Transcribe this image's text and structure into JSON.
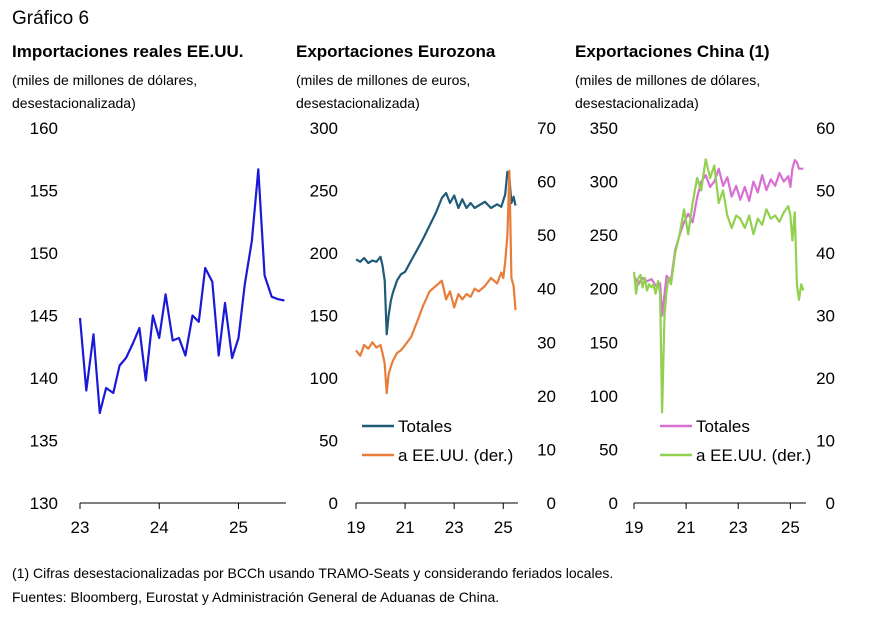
{
  "figure_title": "Gráfico 6",
  "footnote": "(1) Cifras desestacionalizadas por BCCh usando TRAMO-Seats y considerando feriados locales.",
  "sources": "Fuentes: Bloomberg, Eurostat y Administración General de Aduanas de China.",
  "chart_data": [
    {
      "type": "line",
      "title": "Importaciones reales EE.UU.",
      "subtitle_lines": [
        "(miles de millones de dólares,",
        "desestacionalizada)"
      ],
      "ylim": [
        130,
        160
      ],
      "yticks": [
        130,
        135,
        140,
        145,
        150,
        155,
        160
      ],
      "xlim": [
        2023.0,
        2025.6
      ],
      "xticks": [
        2023,
        2024,
        2025
      ],
      "xtick_labels": [
        "23",
        "24",
        "25"
      ],
      "series": [
        {
          "color": "#1a1ad6",
          "axis": "left",
          "x": [
            2023.0,
            2023.08,
            2023.17,
            2023.25,
            2023.33,
            2023.42,
            2023.5,
            2023.58,
            2023.67,
            2023.75,
            2023.83,
            2023.92,
            2024.0,
            2024.08,
            2024.17,
            2024.25,
            2024.33,
            2024.42,
            2024.5,
            2024.58,
            2024.67,
            2024.75,
            2024.83,
            2024.92,
            2025.0,
            2025.08,
            2025.17,
            2025.25,
            2025.33,
            2025.42,
            2025.5,
            2025.58
          ],
          "y": [
            144.8,
            139.0,
            143.5,
            137.2,
            139.2,
            138.8,
            141.0,
            141.6,
            142.8,
            144.0,
            139.8,
            145.0,
            143.2,
            146.7,
            143.0,
            143.2,
            141.8,
            145.0,
            144.5,
            148.8,
            147.7,
            141.8,
            146.0,
            141.6,
            143.2,
            147.5,
            151.0,
            156.7,
            148.2,
            146.5,
            146.3,
            146.2
          ]
        }
      ]
    },
    {
      "type": "line",
      "title": "Exportaciones Eurozona",
      "subtitle_lines": [
        "(miles de millones de euros,",
        "desestacionalizada)"
      ],
      "ylim": [
        0,
        300
      ],
      "yticks": [
        0,
        50,
        100,
        150,
        200,
        250,
        300
      ],
      "y2lim": [
        0,
        70
      ],
      "y2ticks": [
        0,
        10,
        20,
        30,
        40,
        50,
        60,
        70
      ],
      "xlim": [
        2019.0,
        2025.6
      ],
      "xticks": [
        2019,
        2021,
        2023,
        2025
      ],
      "xtick_labels": [
        "19",
        "21",
        "23",
        "25"
      ],
      "legend_position": "bottom-center",
      "series": [
        {
          "name": "Totales",
          "color": "#1f5b78",
          "axis": "left",
          "x": [
            2019.0,
            2019.17,
            2019.33,
            2019.5,
            2019.67,
            2019.83,
            2020.0,
            2020.08,
            2020.17,
            2020.25,
            2020.33,
            2020.42,
            2020.5,
            2020.67,
            2020.83,
            2021.0,
            2021.25,
            2021.5,
            2021.75,
            2022.0,
            2022.25,
            2022.5,
            2022.67,
            2022.83,
            2023.0,
            2023.17,
            2023.33,
            2023.5,
            2023.67,
            2023.83,
            2024.0,
            2024.25,
            2024.5,
            2024.75,
            2024.92,
            2025.0,
            2025.08,
            2025.17,
            2025.25,
            2025.33,
            2025.42,
            2025.5
          ],
          "y": [
            195,
            193,
            196,
            192,
            194,
            193,
            197,
            190,
            178,
            135,
            150,
            162,
            168,
            178,
            183,
            185,
            194,
            203,
            212,
            222,
            232,
            244,
            248,
            240,
            246,
            236,
            243,
            236,
            240,
            236,
            238,
            241,
            236,
            239,
            237,
            242,
            247,
            265,
            260,
            240,
            245,
            238
          ]
        },
        {
          "name": "a EE.UU. (der.)",
          "color": "#e87d3a",
          "axis": "right",
          "x": [
            2019.0,
            2019.17,
            2019.33,
            2019.5,
            2019.67,
            2019.83,
            2020.0,
            2020.08,
            2020.17,
            2020.25,
            2020.33,
            2020.42,
            2020.5,
            2020.67,
            2020.83,
            2021.0,
            2021.25,
            2021.5,
            2021.75,
            2022.0,
            2022.25,
            2022.5,
            2022.67,
            2022.83,
            2023.0,
            2023.17,
            2023.33,
            2023.5,
            2023.67,
            2023.83,
            2024.0,
            2024.25,
            2024.5,
            2024.75,
            2024.92,
            2025.0,
            2025.08,
            2025.17,
            2025.25,
            2025.33,
            2025.42,
            2025.5
          ],
          "y": [
            28.5,
            27.5,
            29.5,
            28.8,
            30.0,
            29.0,
            29.5,
            28.0,
            26.0,
            20.5,
            24.0,
            25.5,
            26.5,
            28.0,
            28.5,
            29.5,
            31.0,
            34.0,
            37.0,
            39.5,
            40.5,
            41.5,
            38.0,
            39.5,
            36.5,
            39.0,
            38.0,
            39.0,
            38.5,
            40.0,
            39.5,
            40.5,
            42.0,
            41.0,
            43.0,
            42.0,
            45.0,
            50.0,
            62.0,
            42.0,
            40.5,
            36.0
          ]
        }
      ]
    },
    {
      "type": "line",
      "title": "Exportaciones China (1)",
      "subtitle_lines": [
        "(miles de millones de dólares,",
        "desestacionalizada)"
      ],
      "ylim": [
        0,
        350
      ],
      "yticks": [
        0,
        50,
        100,
        150,
        200,
        250,
        300,
        350
      ],
      "y2lim": [
        0,
        60
      ],
      "y2ticks": [
        0,
        10,
        20,
        30,
        40,
        50,
        60
      ],
      "xlim": [
        2019.0,
        2025.6
      ],
      "xticks": [
        2019,
        2021,
        2023,
        2025
      ],
      "xtick_labels": [
        "19",
        "21",
        "23",
        "25"
      ],
      "legend_position": "bottom-center",
      "series": [
        {
          "name": "Totales",
          "color": "#d86fd2",
          "axis": "left",
          "x": [
            2019.0,
            2019.17,
            2019.33,
            2019.5,
            2019.67,
            2019.83,
            2020.0,
            2020.08,
            2020.17,
            2020.25,
            2020.42,
            2020.58,
            2020.75,
            2020.92,
            2021.08,
            2021.25,
            2021.42,
            2021.58,
            2021.75,
            2021.92,
            2022.08,
            2022.25,
            2022.42,
            2022.58,
            2022.75,
            2022.92,
            2023.08,
            2023.25,
            2023.42,
            2023.58,
            2023.75,
            2023.92,
            2024.08,
            2024.25,
            2024.42,
            2024.58,
            2024.75,
            2024.92,
            2025.0,
            2025.08,
            2025.17,
            2025.25,
            2025.33,
            2025.5
          ],
          "y": [
            212,
            204,
            210,
            207,
            209,
            203,
            205,
            175,
            195,
            212,
            208,
            236,
            250,
            262,
            270,
            262,
            285,
            300,
            306,
            295,
            300,
            312,
            296,
            304,
            286,
            296,
            283,
            295,
            282,
            300,
            290,
            306,
            292,
            302,
            296,
            308,
            300,
            305,
            295,
            312,
            320,
            318,
            312,
            312
          ]
        },
        {
          "name": "a EE.UU. (der.)",
          "color": "#92d050",
          "axis": "right",
          "x": [
            2019.0,
            2019.08,
            2019.17,
            2019.25,
            2019.33,
            2019.42,
            2019.5,
            2019.58,
            2019.67,
            2019.75,
            2019.83,
            2019.92,
            2020.0,
            2020.08,
            2020.17,
            2020.25,
            2020.33,
            2020.42,
            2020.58,
            2020.75,
            2020.92,
            2021.08,
            2021.25,
            2021.42,
            2021.58,
            2021.75,
            2021.92,
            2022.08,
            2022.25,
            2022.42,
            2022.58,
            2022.75,
            2022.92,
            2023.08,
            2023.25,
            2023.42,
            2023.58,
            2023.75,
            2023.92,
            2024.08,
            2024.25,
            2024.42,
            2024.58,
            2024.75,
            2024.92,
            2025.0,
            2025.08,
            2025.17,
            2025.25,
            2025.33,
            2025.42,
            2025.5
          ],
          "y": [
            37.0,
            33.5,
            36.0,
            36.5,
            34.5,
            36.0,
            34.0,
            35.0,
            34.5,
            35.0,
            33.5,
            35.5,
            33.5,
            14.5,
            30.0,
            34.0,
            36.0,
            35.0,
            40.0,
            43.0,
            47.0,
            43.0,
            48.0,
            52.0,
            50.0,
            55.0,
            52.0,
            54.0,
            48.0,
            50.0,
            46.0,
            44.0,
            46.0,
            45.5,
            44.0,
            46.0,
            43.0,
            45.5,
            44.5,
            47.0,
            45.5,
            46.0,
            45.0,
            46.5,
            47.5,
            46.0,
            42.0,
            46.5,
            35.0,
            32.5,
            35.0,
            34.0
          ]
        }
      ]
    }
  ]
}
